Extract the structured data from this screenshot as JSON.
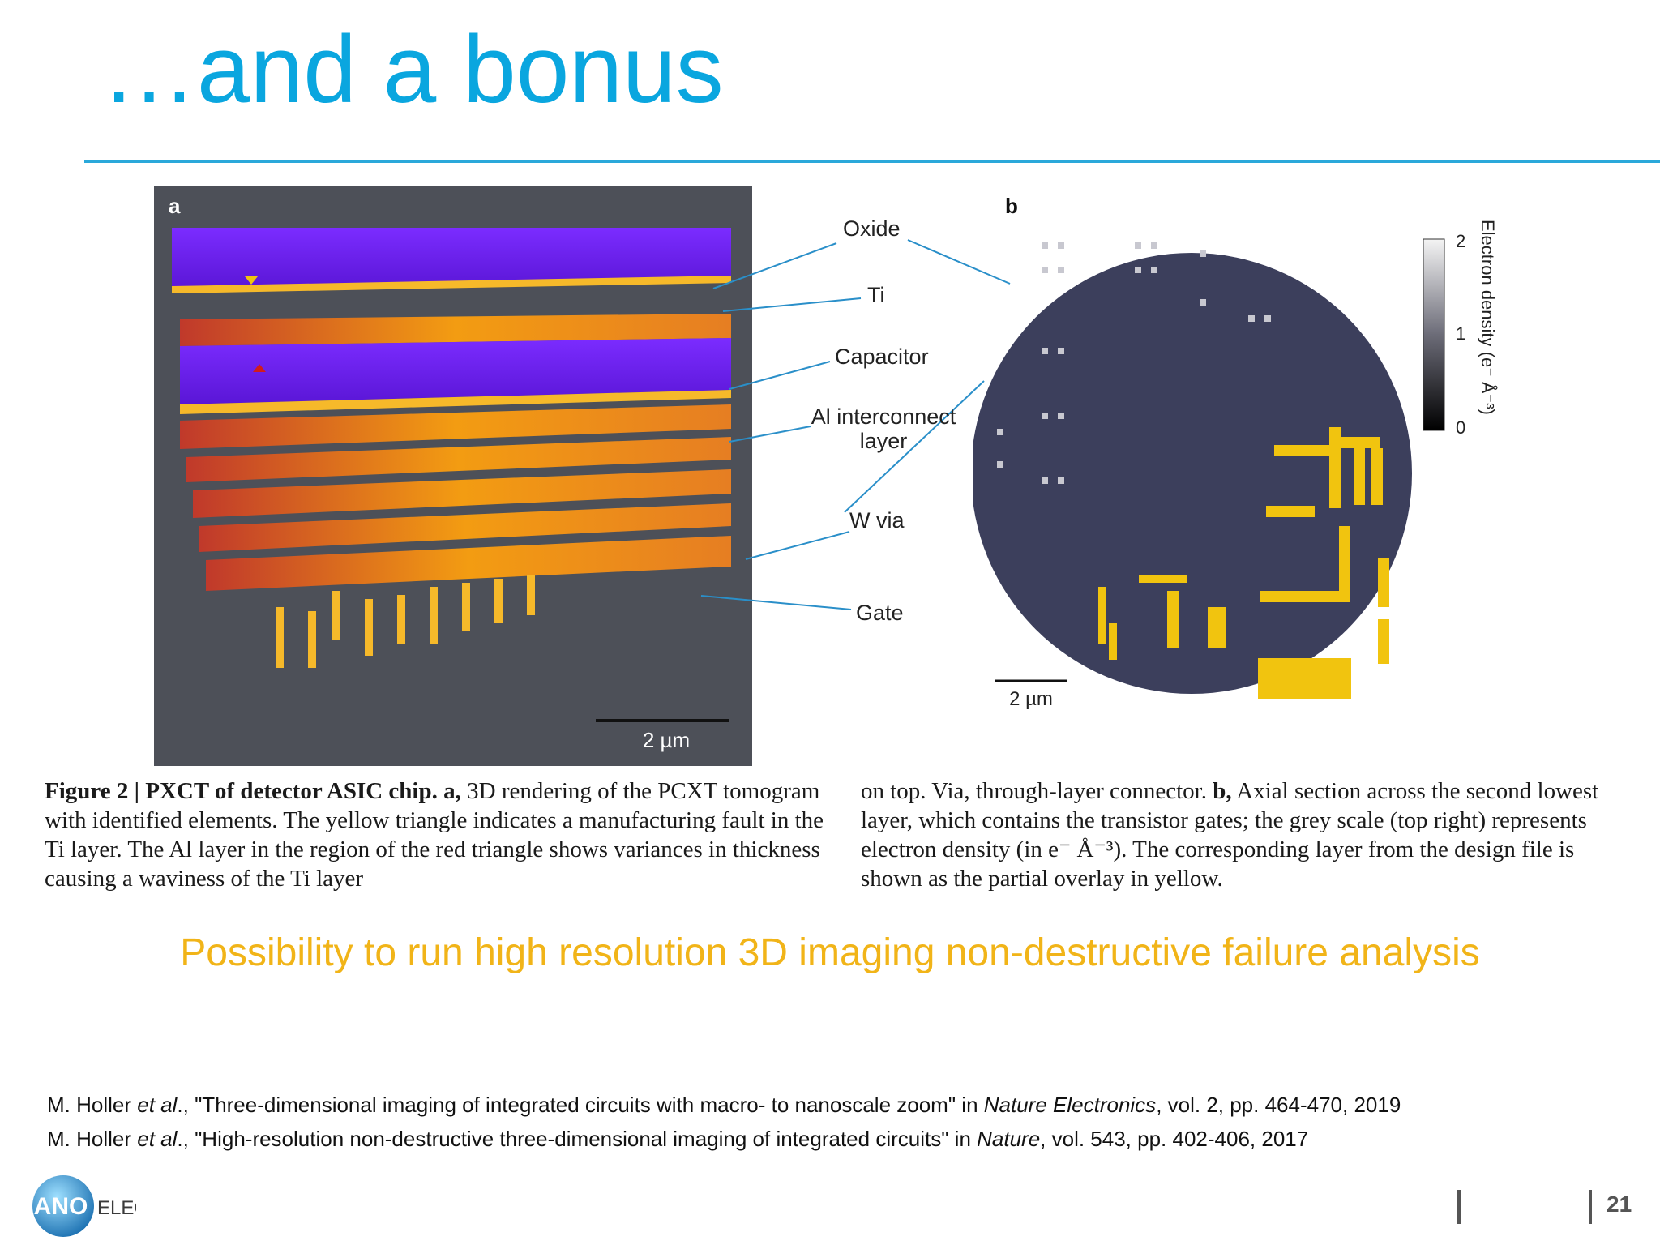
{
  "slide": {
    "title": "…and a bonus",
    "highlight": "Possibility to run high resolution 3D imaging non-destructive failure analysis",
    "page_number": "21"
  },
  "figure": {
    "panel_a_letter": "a",
    "panel_b_letter": "b",
    "scale_a": "2 µm",
    "scale_b": "2 µm",
    "callouts": [
      "Oxide",
      "Ti",
      "Capacitor",
      "Al interconnect layer",
      "W via",
      "Gate"
    ],
    "colorbar": {
      "label": "Electron density (e⁻ Å⁻³)",
      "ticks": [
        "2",
        "1",
        "0"
      ]
    },
    "caption_left_bold": "Figure 2 | PXCT of detector ASIC chip. a,",
    "caption_left": " 3D rendering of the PCXT tomogram with identified elements. The yellow triangle indicates a manufacturing fault in the Ti layer. The Al layer in the region of the red triangle shows variances in thickness causing a waviness of the Ti layer",
    "caption_right_1": "on top. Via, through-layer connector. ",
    "caption_right_bold": "b,",
    "caption_right_2": " Axial section across the second lowest layer, which contains the transistor gates; the grey scale (top right) represents electron density (in e⁻ Å⁻³). The corresponding layer from the design file is shown as the partial overlay in yellow."
  },
  "references": [
    {
      "authors": "M. Holler ",
      "etal": "et al",
      "title": "., \"Three-dimensional imaging of integrated circuits with macro- to nanoscale zoom\" in ",
      "journal": "Nature Electronics",
      "details": ", vol. 2, pp. 464-470, 2019"
    },
    {
      "authors": "M. Holler ",
      "etal": "et al",
      "title": "., \"High-resolution non-destructive three-dimensional imaging of integrated circuits\" in ",
      "journal": "Nature",
      "details": ", vol. 543, pp. 402-406, 2017"
    }
  ],
  "logo": {
    "text_left": "NANO",
    "text_right": "ELEC."
  },
  "colors": {
    "title": "#0aa6df",
    "highlight": "#f1b418",
    "rule": "#2aa8da"
  }
}
